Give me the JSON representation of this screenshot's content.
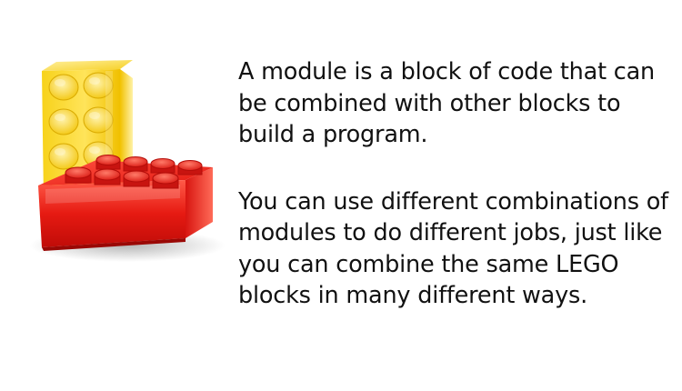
{
  "slide": {
    "paragraphs": [
      "A module is a block of code that can be combined with other blocks to build a program.",
      "You can use different combinations of modules to do different jobs, just like you can combine the same LEGO blocks in many different ways."
    ]
  },
  "illustration": {
    "icon": "lego-bricks-icon",
    "colors": {
      "yellow_brick": "#f5c400",
      "red_brick": "#e8201c"
    }
  }
}
